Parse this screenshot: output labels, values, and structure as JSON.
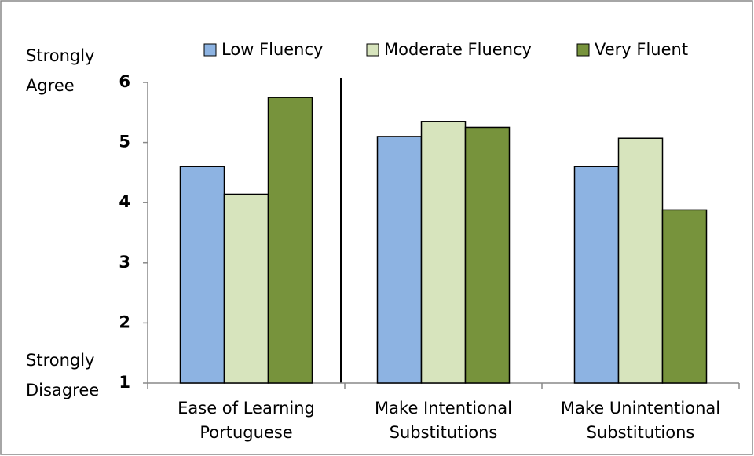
{
  "chart_data": {
    "type": "bar",
    "categories": [
      "Ease of Learning\nPortuguese",
      "Make Intentional\nSubstitutions",
      "Make Unintentional\nSubstitutions"
    ],
    "series": [
      {
        "name": "Low Fluency",
        "color": "#8db3e2",
        "values": [
          4.6,
          5.1,
          4.6
        ]
      },
      {
        "name": "Moderate Fluency",
        "color": "#d7e4bd",
        "values": [
          4.14,
          5.35,
          5.07
        ]
      },
      {
        "name": "Very Fluent",
        "color": "#77933c",
        "values": [
          5.75,
          5.25,
          3.88
        ]
      }
    ],
    "y_label_top": "Strongly\nAgree",
    "y_label_bottom": "Strongly\nDisagree",
    "ylim": [
      1,
      6
    ],
    "yticks": [
      1,
      2,
      3,
      4,
      5,
      6
    ],
    "legend": "top",
    "grid": false
  }
}
